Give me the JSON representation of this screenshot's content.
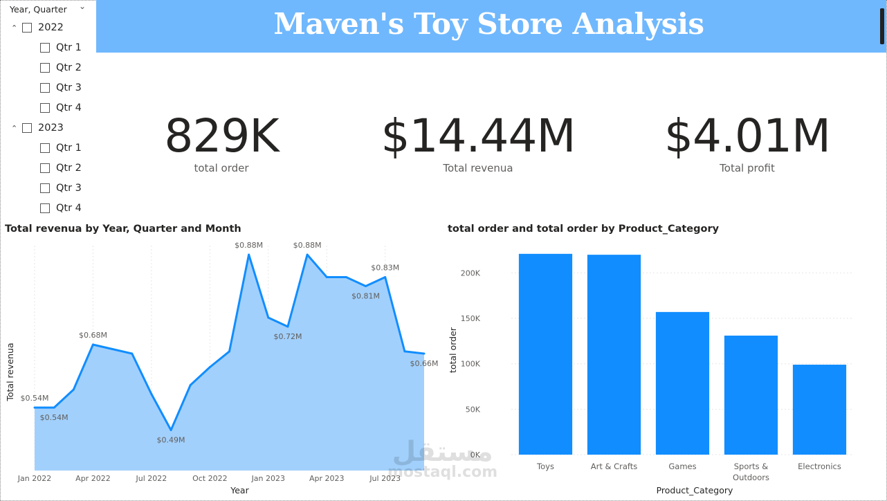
{
  "slicer": {
    "header": "Year, Quarter",
    "years": [
      {
        "label": "2022",
        "quarters": [
          "Qtr 1",
          "Qtr 2",
          "Qtr 3",
          "Qtr 4"
        ]
      },
      {
        "label": "2023",
        "quarters": [
          "Qtr 1",
          "Qtr 2",
          "Qtr 3",
          "Qtr 4"
        ]
      }
    ]
  },
  "title": "Maven's Toy Store Analysis",
  "kpis": [
    {
      "value": "829K",
      "label": "total order"
    },
    {
      "value": "$14.44M",
      "label": "Total revenua"
    },
    {
      "value": "$4.01M",
      "label": "Total profit"
    }
  ],
  "watermark": {
    "arabic": "مستقل",
    "latin": "mostaql.com"
  },
  "colors": {
    "banner": "#70b8fd",
    "line": "#118dff",
    "area": "#a2d0fc",
    "bar": "#118dff"
  },
  "chart_data": [
    {
      "type": "area",
      "title": "Total revenua by Year, Quarter and Month",
      "xlabel": "Year",
      "ylabel": "Total revenua",
      "x_ticks": [
        "Jan 2022",
        "Apr 2022",
        "Jul 2022",
        "Oct 2022",
        "Jan 2023",
        "Apr 2023",
        "Jul 2023"
      ],
      "x": [
        "Jan 2022",
        "Feb 2022",
        "Mar 2022",
        "Apr 2022",
        "May 2022",
        "Jun 2022",
        "Jul 2022",
        "Aug 2022",
        "Sep 2022",
        "Oct 2022",
        "Nov 2022",
        "Dec 2022",
        "Jan 2023",
        "Feb 2023",
        "Mar 2023",
        "Apr 2023",
        "May 2023",
        "Jun 2023",
        "Jul 2023",
        "Aug 2023",
        "Sep 2023"
      ],
      "values": [
        0.54,
        0.54,
        0.58,
        0.68,
        0.67,
        0.66,
        0.57,
        0.49,
        0.59,
        0.63,
        0.665,
        0.88,
        0.74,
        0.72,
        0.88,
        0.83,
        0.83,
        0.81,
        0.83,
        0.665,
        0.66
      ],
      "data_labels": [
        {
          "index": 0,
          "text": "$0.54M",
          "pos": "above"
        },
        {
          "index": 1,
          "text": "$0.54M",
          "pos": "below"
        },
        {
          "index": 3,
          "text": "$0.68M",
          "pos": "above"
        },
        {
          "index": 7,
          "text": "$0.49M",
          "pos": "below"
        },
        {
          "index": 11,
          "text": "$0.88M",
          "pos": "above"
        },
        {
          "index": 13,
          "text": "$0.72M",
          "pos": "below"
        },
        {
          "index": 14,
          "text": "$0.88M",
          "pos": "above"
        },
        {
          "index": 17,
          "text": "$0.81M",
          "pos": "below"
        },
        {
          "index": 18,
          "text": "$0.83M",
          "pos": "above"
        },
        {
          "index": 20,
          "text": "$0.66M",
          "pos": "below"
        }
      ],
      "ylim": [
        0.4,
        0.9
      ],
      "grid": true
    },
    {
      "type": "bar",
      "title": "total order and total order by Product_Category",
      "xlabel": "Product_Category",
      "ylabel": "total order",
      "categories": [
        "Toys",
        "Art & Crafts",
        "Games",
        "Sports & Outdoors",
        "Electronics"
      ],
      "values": [
        221000,
        220000,
        157000,
        131000,
        99000
      ],
      "y_ticks": [
        "0K",
        "50K",
        "100K",
        "150K",
        "200K"
      ],
      "ylim": [
        0,
        230000
      ],
      "grid": true
    }
  ]
}
